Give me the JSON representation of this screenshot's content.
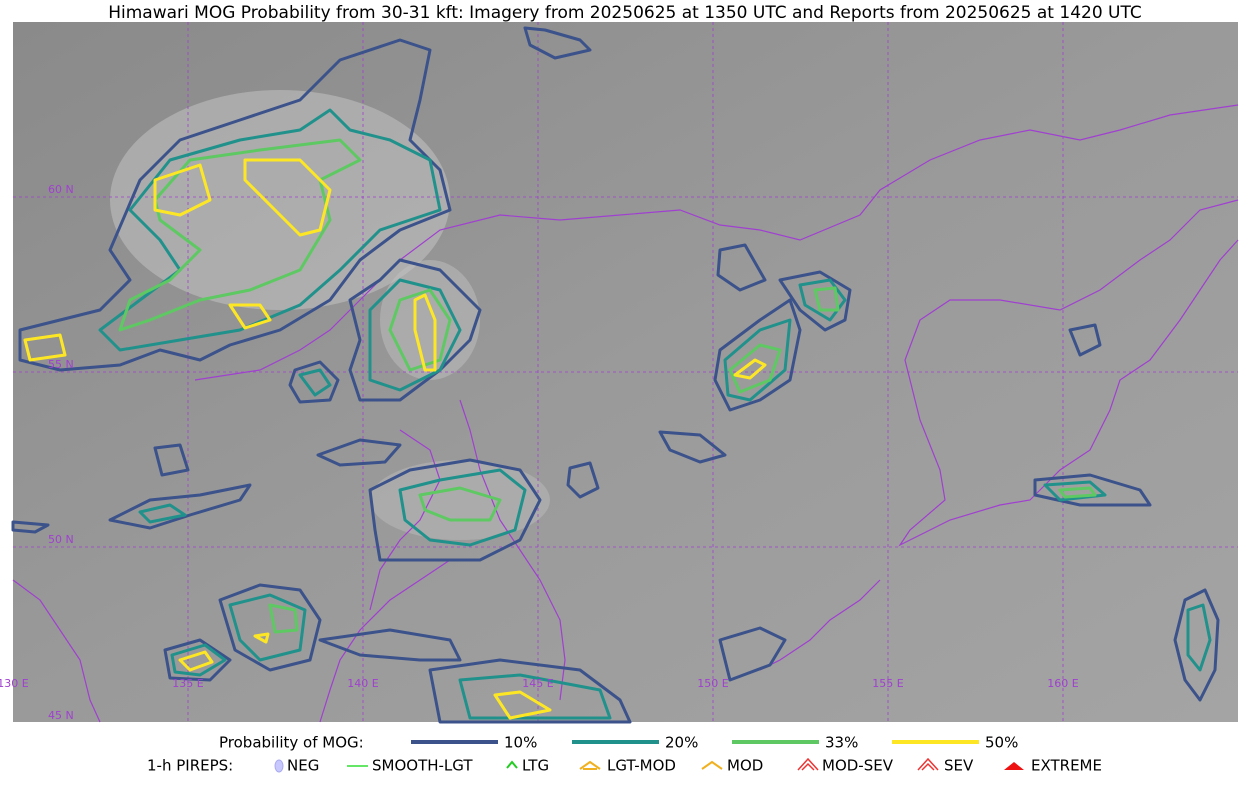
{
  "title": "Himawari MOG Probability from 30-31 kft: Imagery from 20250625 at 1350 UTC and Reports from 20250625 at 1420 UTC",
  "map": {
    "lat_labels": [
      "60 N",
      "55 N",
      "50 N",
      "45 N"
    ],
    "lon_labels": [
      "130 E",
      "135 E",
      "140 E",
      "145 E",
      "150 E",
      "155 E",
      "160 E"
    ]
  },
  "legend": {
    "mog": {
      "title": "Probability of MOG:",
      "items": [
        {
          "label": "10%",
          "color": "#3b528b"
        },
        {
          "label": "20%",
          "color": "#21918c"
        },
        {
          "label": "33%",
          "color": "#5ec962"
        },
        {
          "label": "50%",
          "color": "#fde725"
        }
      ]
    },
    "pireps": {
      "title": "1-h PIREPS:",
      "items": [
        "NEG",
        "SMOOTH-LGT",
        "LTG",
        "LGT-MOD",
        "MOD",
        "MOD-SEV",
        "SEV",
        "EXTREME"
      ]
    }
  }
}
